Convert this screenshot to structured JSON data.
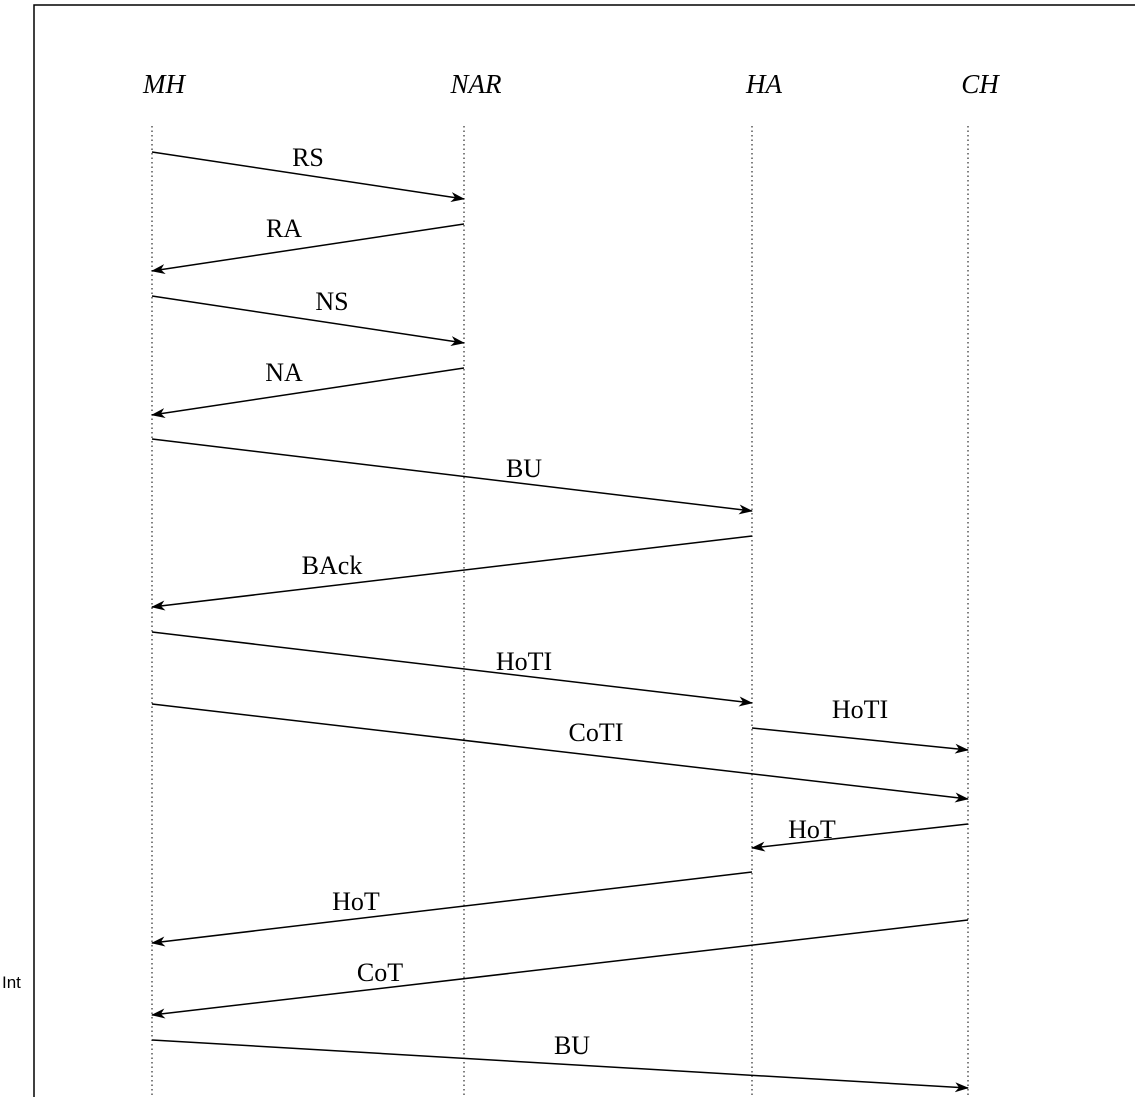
{
  "side_text": "Int",
  "participants": [
    {
      "id": "MH",
      "label": "MH"
    },
    {
      "id": "NAR",
      "label": "NAR"
    },
    {
      "id": "HA",
      "label": "HA"
    },
    {
      "id": "CH",
      "label": "CH"
    }
  ],
  "messages": [
    {
      "label": "RS",
      "from": "MH",
      "to": "NAR"
    },
    {
      "label": "RA",
      "from": "NAR",
      "to": "MH"
    },
    {
      "label": "NS",
      "from": "MH",
      "to": "NAR"
    },
    {
      "label": "NA",
      "from": "NAR",
      "to": "MH"
    },
    {
      "label": "BU",
      "from": "MH",
      "to": "HA"
    },
    {
      "label": "BAck",
      "from": "HA",
      "to": "MH"
    },
    {
      "label": "HoTI",
      "from": "MH",
      "to": "HA"
    },
    {
      "label": "HoTI",
      "from": "HA",
      "to": "CH"
    },
    {
      "label": "CoTI",
      "from": "MH",
      "to": "CH"
    },
    {
      "label": "HoT",
      "from": "CH",
      "to": "HA"
    },
    {
      "label": "HoT",
      "from": "HA",
      "to": "MH"
    },
    {
      "label": "CoT",
      "from": "CH",
      "to": "MH"
    },
    {
      "label": "BU",
      "from": "MH",
      "to": "CH"
    }
  ]
}
